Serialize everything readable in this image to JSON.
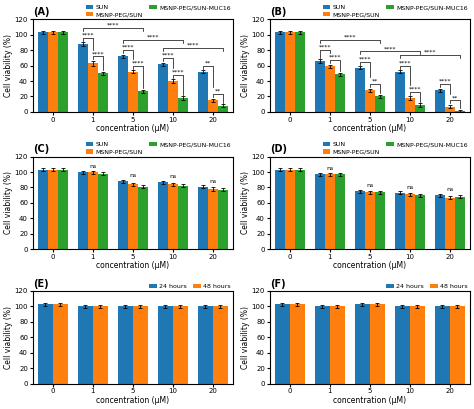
{
  "chart_data": [
    {
      "type": "bar",
      "title": "(A)",
      "x_label": "concentration (μM)",
      "y_label": "Cell viability (%)",
      "categories": [
        "0",
        "1",
        "5",
        "10",
        "20"
      ],
      "series": [
        {
          "name": "SUN",
          "values": [
            103,
            88,
            72,
            62,
            52
          ],
          "errors": [
            2,
            2,
            2,
            2,
            2
          ]
        },
        {
          "name": "MSNP-PEG/SUN",
          "values": [
            103,
            63,
            52,
            40,
            15
          ],
          "errors": [
            2,
            3,
            2,
            2,
            2
          ]
        },
        {
          "name": "MSNP-PEG/SUN-MUC16",
          "values": [
            103,
            50,
            27,
            18,
            8
          ],
          "errors": [
            2,
            2,
            2,
            2,
            2
          ]
        }
      ],
      "ylim": [
        0,
        120
      ],
      "yticks": [
        0,
        20,
        40,
        60,
        80,
        100,
        120
      ],
      "legend": "upper right",
      "annotations": [
        {
          "text": "****",
          "category": "1",
          "series": [
            "SUN",
            "MSNP-PEG/SUN"
          ]
        },
        {
          "text": "****",
          "category": "1",
          "series": [
            "MSNP-PEG/SUN",
            "MSNP-PEG/SUN-MUC16"
          ]
        },
        {
          "text": "****",
          "category": "5",
          "series": [
            "SUN",
            "MSNP-PEG/SUN"
          ]
        },
        {
          "text": "****",
          "category": "5",
          "series": [
            "MSNP-PEG/SUN",
            "MSNP-PEG/SUN-MUC16"
          ]
        },
        {
          "text": "****",
          "category": "10",
          "series": [
            "SUN",
            "MSNP-PEG/SUN"
          ]
        },
        {
          "text": "****",
          "category": "10",
          "series": [
            "MSNP-PEG/SUN",
            "MSNP-PEG/SUN-MUC16"
          ]
        },
        {
          "text": "**",
          "category": "20",
          "series": [
            "SUN",
            "MSNP-PEG/SUN"
          ]
        },
        {
          "text": "**",
          "category": "20",
          "series": [
            "MSNP-PEG/SUN",
            "MSNP-PEG/SUN-MUC16"
          ]
        },
        {
          "text": "****",
          "categories": [
            "1",
            "5"
          ]
        },
        {
          "text": "****",
          "categories": [
            "5",
            "10"
          ]
        },
        {
          "text": "****",
          "categories": [
            "10",
            "20"
          ]
        }
      ]
    },
    {
      "type": "bar",
      "title": "(B)",
      "x_label": "concentration (μM)",
      "y_label": "Cell viability (%)",
      "categories": [
        "0",
        "1",
        "5",
        "10",
        "20"
      ],
      "series": [
        {
          "name": "SUN",
          "values": [
            103,
            66,
            57,
            52,
            28
          ],
          "errors": [
            2,
            2,
            2,
            2,
            2
          ]
        },
        {
          "name": "MSNP-PEG/SUN",
          "values": [
            103,
            59,
            28,
            18,
            7
          ],
          "errors": [
            2,
            2,
            2,
            2,
            2
          ]
        },
        {
          "name": "MSNP-PEG/SUN-MUC16",
          "values": [
            103,
            49,
            20,
            9,
            1
          ],
          "errors": [
            2,
            2,
            2,
            2,
            2
          ]
        }
      ],
      "ylim": [
        0,
        120
      ],
      "yticks": [
        0,
        20,
        40,
        60,
        80,
        100,
        120
      ],
      "legend": "upper right",
      "annotations": [
        {
          "text": "****",
          "category": "1",
          "series": [
            "SUN",
            "MSNP-PEG/SUN"
          ]
        },
        {
          "text": "****",
          "category": "1",
          "series": [
            "MSNP-PEG/SUN",
            "MSNP-PEG/SUN-MUC16"
          ]
        },
        {
          "text": "****",
          "category": "5",
          "series": [
            "SUN",
            "MSNP-PEG/SUN"
          ]
        },
        {
          "text": "**",
          "category": "5",
          "series": [
            "MSNP-PEG/SUN",
            "MSNP-PEG/SUN-MUC16"
          ]
        },
        {
          "text": "****",
          "category": "10",
          "series": [
            "SUN",
            "MSNP-PEG/SUN"
          ]
        },
        {
          "text": "****",
          "category": "10",
          "series": [
            "MSNP-PEG/SUN",
            "MSNP-PEG/SUN-MUC16"
          ]
        },
        {
          "text": "****",
          "category": "20",
          "series": [
            "SUN",
            "MSNP-PEG/SUN"
          ]
        },
        {
          "text": "**",
          "category": "20",
          "series": [
            "MSNP-PEG/SUN",
            "MSNP-PEG/SUN-MUC16"
          ]
        },
        {
          "text": "****",
          "categories": [
            "1",
            "5"
          ]
        },
        {
          "text": "****",
          "categories": [
            "5",
            "10"
          ]
        },
        {
          "text": "****",
          "categories": [
            "10",
            "20"
          ]
        }
      ]
    },
    {
      "type": "bar",
      "title": "(C)",
      "x_label": "concentration (μM)",
      "y_label": "Cell viability (%)",
      "categories": [
        "0",
        "1",
        "5",
        "10",
        "20"
      ],
      "series": [
        {
          "name": "SUN",
          "values": [
            103,
            100,
            88,
            87,
            81
          ],
          "errors": [
            2,
            2,
            2,
            2,
            2
          ]
        },
        {
          "name": "MSNP-PEG/SUN",
          "values": [
            103,
            100,
            84,
            84,
            78
          ],
          "errors": [
            2,
            2,
            2,
            2,
            2
          ]
        },
        {
          "name": "MSNP-PEG/SUN-MUC16",
          "values": [
            103,
            98,
            81,
            82,
            77
          ],
          "errors": [
            2,
            2,
            2,
            2,
            2
          ]
        }
      ],
      "ylim": [
        0,
        120
      ],
      "yticks": [
        0,
        20,
        40,
        60,
        80,
        100,
        120
      ],
      "legend": "upper right",
      "annotations": [
        {
          "text": "ns",
          "category": "1"
        },
        {
          "text": "ns",
          "category": "5"
        },
        {
          "text": "ns",
          "category": "10"
        },
        {
          "text": "ns",
          "category": "20"
        }
      ]
    },
    {
      "type": "bar",
      "title": "(D)",
      "x_label": "concentration (μM)",
      "y_label": "Cell viability (%)",
      "categories": [
        "0",
        "1",
        "5",
        "10",
        "20"
      ],
      "series": [
        {
          "name": "SUN",
          "values": [
            103,
            97,
            75,
            73,
            70
          ],
          "errors": [
            2,
            2,
            2,
            2,
            2
          ]
        },
        {
          "name": "MSNP-PEG/SUN",
          "values": [
            103,
            97,
            74,
            71,
            67
          ],
          "errors": [
            2,
            2,
            2,
            2,
            2
          ]
        },
        {
          "name": "MSNP-PEG/SUN-MUC16",
          "values": [
            103,
            97,
            74,
            70,
            68
          ],
          "errors": [
            2,
            2,
            2,
            2,
            2
          ]
        }
      ],
      "ylim": [
        0,
        120
      ],
      "yticks": [
        0,
        20,
        40,
        60,
        80,
        100,
        120
      ],
      "legend": "upper right",
      "annotations": [
        {
          "text": "ns",
          "category": "1"
        },
        {
          "text": "ns",
          "category": "5"
        },
        {
          "text": "ns",
          "category": "10"
        },
        {
          "text": "ns",
          "category": "20"
        }
      ]
    },
    {
      "type": "bar",
      "title": "(E)",
      "x_label": "concentration (μM)",
      "y_label": "Cell viability (%)",
      "categories": [
        "0",
        "1",
        "5",
        "10",
        "20"
      ],
      "series": [
        {
          "name": "24 hours",
          "values": [
            103,
            100,
            100,
            100,
            100
          ],
          "errors": [
            2,
            2,
            2,
            2,
            2
          ]
        },
        {
          "name": "48 hours",
          "values": [
            103,
            100,
            100,
            100,
            100
          ],
          "errors": [
            2,
            2,
            2,
            2,
            2
          ]
        }
      ],
      "ylim": [
        0,
        120
      ],
      "yticks": [
        0,
        20,
        40,
        60,
        80,
        100,
        120
      ],
      "legend": "upper right"
    },
    {
      "type": "bar",
      "title": "(F)",
      "x_label": "concentration (μM)",
      "y_label": "Cell viability (%)",
      "categories": [
        "0",
        "1",
        "5",
        "10",
        "20"
      ],
      "series": [
        {
          "name": "24 hours",
          "values": [
            103,
            100,
            103,
            100,
            100
          ],
          "errors": [
            2,
            2,
            2,
            2,
            2
          ]
        },
        {
          "name": "48 hours",
          "values": [
            103,
            100,
            103,
            100,
            100
          ],
          "errors": [
            2,
            2,
            2,
            2,
            2
          ]
        }
      ],
      "ylim": [
        0,
        120
      ],
      "yticks": [
        0,
        20,
        40,
        60,
        80,
        100,
        120
      ],
      "legend": "upper right"
    }
  ]
}
